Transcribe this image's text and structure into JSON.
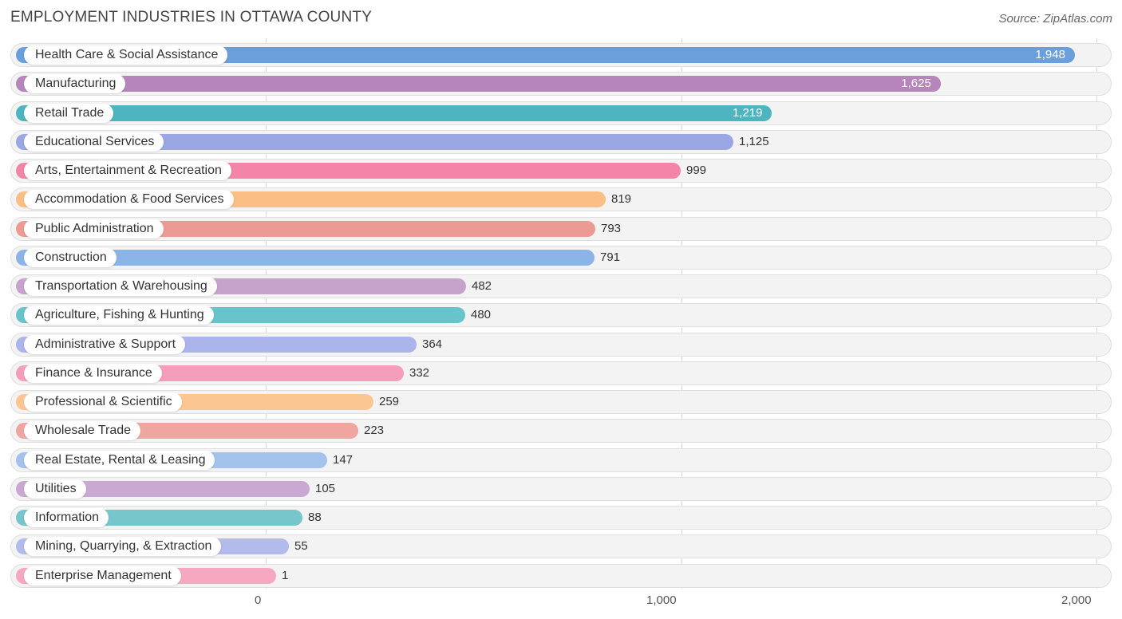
{
  "header": {
    "title": "EMPLOYMENT INDUSTRIES IN OTTAWA COUNTY",
    "source": "Source: ZipAtlas.com"
  },
  "chart_data": {
    "type": "bar",
    "orientation": "horizontal",
    "title": "EMPLOYMENT INDUSTRIES IN OTTAWA COUNTY",
    "xlabel": "",
    "ylabel": "",
    "xlim": [
      0,
      2000
    ],
    "ticks": [
      {
        "value": 0,
        "label": "0"
      },
      {
        "value": 1000,
        "label": "1,000"
      },
      {
        "value": 2000,
        "label": "2,000"
      }
    ],
    "grid": true,
    "categories": [
      "Health Care & Social Assistance",
      "Manufacturing",
      "Retail Trade",
      "Educational Services",
      "Arts, Entertainment & Recreation",
      "Accommodation & Food Services",
      "Public Administration",
      "Construction",
      "Transportation & Warehousing",
      "Agriculture, Fishing & Hunting",
      "Administrative & Support",
      "Finance & Insurance",
      "Professional & Scientific",
      "Wholesale Trade",
      "Real Estate, Rental & Leasing",
      "Utilities",
      "Information",
      "Mining, Quarrying, & Extraction",
      "Enterprise Management"
    ],
    "values": [
      1948,
      1625,
      1219,
      1125,
      999,
      819,
      793,
      791,
      482,
      480,
      364,
      332,
      259,
      223,
      147,
      105,
      88,
      55,
      1
    ],
    "value_labels": [
      "1,948",
      "1,625",
      "1,219",
      "1,125",
      "999",
      "819",
      "793",
      "791",
      "482",
      "480",
      "364",
      "332",
      "259",
      "223",
      "147",
      "105",
      "88",
      "55",
      "1"
    ],
    "colors": [
      "#6a9fdc",
      "#b585bb",
      "#4cb5c0",
      "#9ba6e4",
      "#f285a8",
      "#fbbf86",
      "#eb9a94",
      "#8cb4e6",
      "#c6a3cb",
      "#69c3cb",
      "#acb4ec",
      "#f59ebb",
      "#fcc692",
      "#efa6a0",
      "#a3c3ec",
      "#c9a9d1",
      "#77c6cc",
      "#b3baec",
      "#f7a8c1"
    ]
  }
}
